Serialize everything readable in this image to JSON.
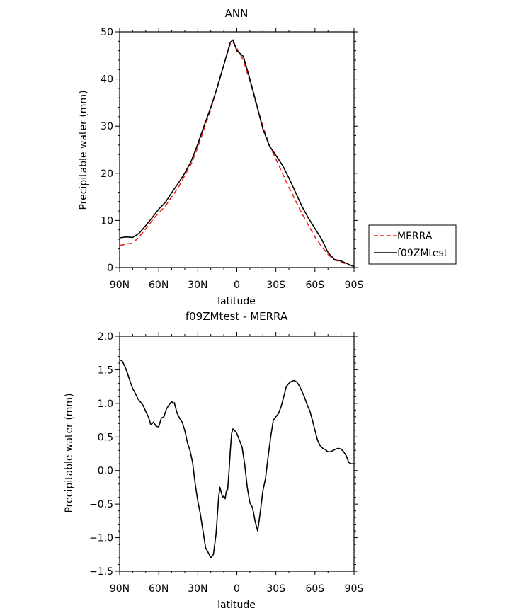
{
  "chart_data": [
    {
      "type": "line",
      "title": "ANN",
      "xlabel": "latitude",
      "ylabel": "Precipitable water (mm)",
      "xlim": [
        90,
        -90
      ],
      "ylim": [
        0,
        50
      ],
      "yticks": [
        0,
        10,
        20,
        30,
        40,
        50
      ],
      "xticks": [
        {
          "value": 90,
          "label": "90N"
        },
        {
          "value": 60,
          "label": "60N"
        },
        {
          "value": 30,
          "label": "30N"
        },
        {
          "value": 0,
          "label": "0"
        },
        {
          "value": -30,
          "label": "30S"
        },
        {
          "value": -60,
          "label": "60S"
        },
        {
          "value": -90,
          "label": "90S"
        }
      ],
      "legend_position": "right, outside plot",
      "series": [
        {
          "name": "MERRA",
          "color": "#e8231c",
          "dash": "dashed",
          "x": [
            90,
            80,
            75,
            70,
            65,
            60,
            55,
            50,
            45,
            40,
            35,
            30,
            25,
            20,
            15,
            10,
            5,
            3,
            0,
            -5,
            -10,
            -15,
            -20,
            -25,
            -30,
            -35,
            -40,
            -45,
            -50,
            -55,
            -60,
            -65,
            -70,
            -75,
            -80,
            -85,
            -90
          ],
          "y": [
            4.7,
            5.2,
            6.5,
            8.2,
            10.0,
            11.6,
            13.0,
            15.0,
            17.0,
            19.5,
            22.0,
            25.5,
            29.5,
            33.5,
            38.5,
            43.0,
            47.5,
            47.8,
            46.5,
            44.0,
            39.5,
            34.5,
            30.0,
            26.0,
            23.0,
            20.0,
            17.0,
            14.2,
            11.5,
            9.0,
            6.5,
            4.5,
            2.8,
            1.6,
            1.2,
            0.6,
            0.3
          ]
        },
        {
          "name": "f09ZMtest",
          "color": "#000000",
          "dash": "solid",
          "x": [
            90,
            85,
            80,
            75,
            70,
            65,
            60,
            55,
            50,
            45,
            40,
            35,
            30,
            25,
            20,
            15,
            10,
            5,
            3,
            0,
            -5,
            -10,
            -15,
            -20,
            -25,
            -30,
            -35,
            -40,
            -45,
            -50,
            -55,
            -60,
            -65,
            -70,
            -75,
            -80,
            -85,
            -90
          ],
          "y": [
            6.3,
            6.5,
            6.4,
            7.3,
            8.9,
            10.6,
            12.4,
            13.8,
            15.9,
            17.9,
            20.0,
            22.6,
            26.2,
            30.2,
            34.0,
            38.2,
            43.0,
            47.8,
            48.3,
            46.0,
            44.8,
            40.0,
            34.8,
            29.4,
            25.8,
            23.8,
            21.7,
            19.0,
            16.0,
            13.0,
            10.5,
            8.3,
            6.1,
            3.2,
            1.7,
            1.4,
            0.8,
            0.2
          ]
        }
      ]
    },
    {
      "type": "line",
      "title": "f09ZMtest - MERRA",
      "xlabel": "latitude",
      "ylabel": "Precipitable water (mm)",
      "xlim": [
        90,
        -90
      ],
      "ylim": [
        -1.5,
        2.0
      ],
      "yticks": [
        -1.5,
        -1.0,
        -0.5,
        0.0,
        0.5,
        1.0,
        1.5,
        2.0
      ],
      "xticks": [
        {
          "value": 90,
          "label": "90N"
        },
        {
          "value": 60,
          "label": "60N"
        },
        {
          "value": 30,
          "label": "30N"
        },
        {
          "value": 0,
          "label": "0"
        },
        {
          "value": -30,
          "label": "30S"
        },
        {
          "value": -60,
          "label": "60S"
        },
        {
          "value": -90,
          "label": "90S"
        }
      ],
      "series": [
        {
          "color": "#000000",
          "dash": "solid",
          "x": [
            90,
            88,
            86,
            84,
            82,
            80,
            78,
            76,
            74,
            72,
            70,
            68,
            66,
            64,
            62,
            60,
            58,
            56,
            54,
            52,
            50,
            49,
            48,
            46,
            44,
            42,
            40,
            38,
            36,
            34,
            32,
            30,
            28,
            26,
            24,
            22,
            20,
            18,
            16,
            14,
            13,
            12,
            11,
            10,
            9,
            8,
            7,
            6,
            5,
            4,
            3,
            2,
            1,
            0,
            -2,
            -4,
            -6,
            -8,
            -10,
            -12,
            -14,
            -16,
            -18,
            -20,
            -22,
            -24,
            -26,
            -28,
            -30,
            -32,
            -34,
            -36,
            -38,
            -40,
            -42,
            -44,
            -46,
            -48,
            -50,
            -52,
            -54,
            -56,
            -58,
            -60,
            -62,
            -64,
            -66,
            -68,
            -70,
            -72,
            -74,
            -76,
            -78,
            -80,
            -82,
            -84,
            -86,
            -88,
            -90
          ],
          "y": [
            1.65,
            1.63,
            1.55,
            1.45,
            1.33,
            1.22,
            1.15,
            1.07,
            1.02,
            0.97,
            0.88,
            0.8,
            0.68,
            0.72,
            0.66,
            0.65,
            0.78,
            0.8,
            0.92,
            0.98,
            1.03,
            1.0,
            1.01,
            0.86,
            0.78,
            0.72,
            0.6,
            0.42,
            0.3,
            0.12,
            -0.2,
            -0.45,
            -0.65,
            -0.9,
            -1.15,
            -1.22,
            -1.3,
            -1.25,
            -0.95,
            -0.4,
            -0.25,
            -0.32,
            -0.4,
            -0.38,
            -0.42,
            -0.3,
            -0.28,
            0.0,
            0.3,
            0.55,
            0.62,
            0.6,
            0.58,
            0.55,
            0.45,
            0.35,
            0.1,
            -0.25,
            -0.48,
            -0.55,
            -0.75,
            -0.9,
            -0.62,
            -0.3,
            -0.12,
            0.2,
            0.5,
            0.75,
            0.8,
            0.85,
            0.95,
            1.1,
            1.25,
            1.3,
            1.33,
            1.34,
            1.32,
            1.26,
            1.18,
            1.09,
            0.98,
            0.89,
            0.75,
            0.6,
            0.45,
            0.37,
            0.33,
            0.31,
            0.28,
            0.28,
            0.3,
            0.32,
            0.33,
            0.32,
            0.28,
            0.22,
            0.12,
            0.1,
            0.1
          ]
        }
      ]
    }
  ]
}
